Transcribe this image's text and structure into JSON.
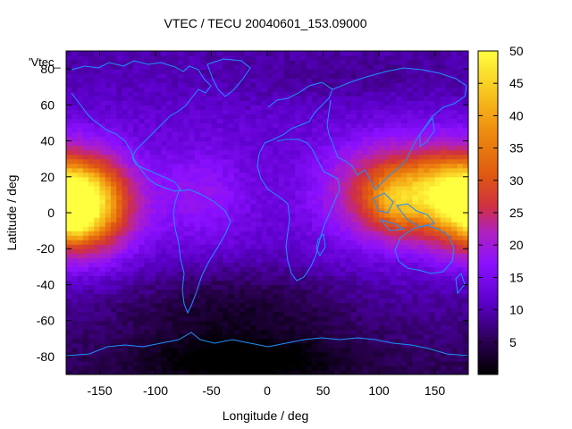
{
  "chart_data": {
    "type": "heatmap",
    "title": "VTEC / TECU 20040601_153.09000",
    "xlabel": "Longitude / deg",
    "ylabel": "Latitude / deg",
    "key_label": "'Vtec_",
    "xlim": [
      -180,
      180
    ],
    "ylim": [
      -90,
      90
    ],
    "x_ticks": [
      -150,
      -100,
      -50,
      0,
      50,
      100,
      150
    ],
    "y_ticks": [
      -80,
      -60,
      -40,
      -20,
      0,
      20,
      40,
      60,
      80
    ],
    "colorbar": {
      "range": [
        0,
        50
      ],
      "ticks": [
        5,
        10,
        15,
        20,
        25,
        30,
        35,
        40,
        45,
        50
      ],
      "palette": [
        "#000000",
        "#2a0050",
        "#5a00c8",
        "#8a10ff",
        "#b020c0",
        "#d03040",
        "#e05a10",
        "#f09010",
        "#f8c820",
        "#ffff40"
      ]
    },
    "coastline_color": "#1e90ff",
    "grid": "2.5 x 5 deg cells",
    "features": [
      {
        "lon": -165,
        "lat": 5,
        "value": 38,
        "sx": 30,
        "sy": 18
      },
      {
        "lon": -172,
        "lat": -4,
        "value": 8,
        "sx": 8,
        "sy": 8
      },
      {
        "lon": 125,
        "lat": 12,
        "value": 25,
        "sx": 45,
        "sy": 18
      },
      {
        "lon": 115,
        "lat": 5,
        "value": 8,
        "sx": 18,
        "sy": 12
      },
      {
        "lon": 160,
        "lat": 12,
        "value": 6,
        "sx": 20,
        "sy": 14
      },
      {
        "lon": -60,
        "lat": 10,
        "value": 6,
        "sx": 30,
        "sy": 18
      },
      {
        "lon": -30,
        "lat": -55,
        "value": -6,
        "sx": 70,
        "sy": 18
      },
      {
        "lon": -20,
        "lat": -82,
        "value": -8,
        "sx": 60,
        "sy": 8
      },
      {
        "lon": 80,
        "lat": 75,
        "value": -2,
        "sx": 80,
        "sy": 10
      }
    ]
  }
}
